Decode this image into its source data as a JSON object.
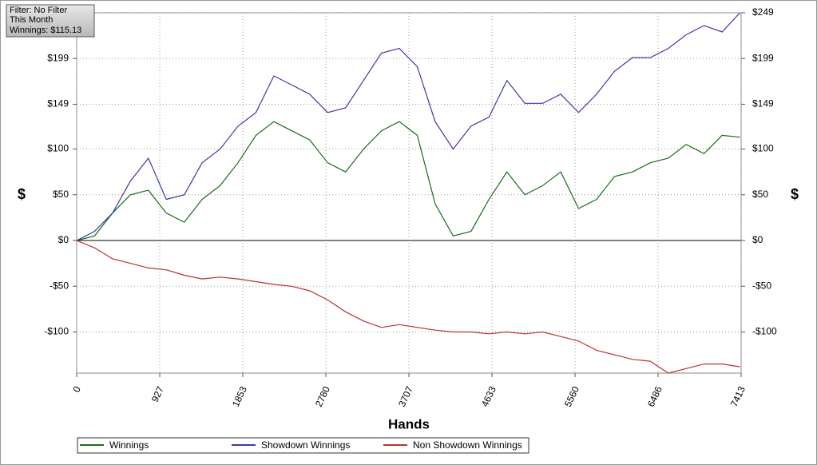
{
  "chart_data": {
    "type": "line",
    "info": [
      "Filter: No Filter",
      "This Month",
      "Winnings: $115.13"
    ],
    "xlabel": "Hands",
    "ylabel": "$",
    "y2label": "$",
    "xlim": [
      0,
      7413
    ],
    "xticks": [
      0,
      927,
      1853,
      2780,
      3707,
      4633,
      5560,
      6486,
      7413
    ],
    "ylim": [
      -145,
      249
    ],
    "yticks": [
      {
        "value": 249,
        "label": "$249"
      },
      {
        "value": 199,
        "label": "$199"
      },
      {
        "value": 149,
        "label": "$149"
      },
      {
        "value": 100,
        "label": "$100"
      },
      {
        "value": 50,
        "label": "$50"
      },
      {
        "value": 0,
        "label": "$0"
      },
      {
        "value": -50,
        "label": "-$50"
      },
      {
        "value": -100,
        "label": "-$100"
      }
    ],
    "grid": true,
    "x": [
      0,
      200,
      400,
      600,
      800,
      1000,
      1200,
      1400,
      1600,
      1800,
      2000,
      2200,
      2400,
      2600,
      2800,
      3000,
      3200,
      3400,
      3600,
      3800,
      4000,
      4200,
      4400,
      4600,
      4800,
      5000,
      5200,
      5400,
      5600,
      5800,
      6000,
      6200,
      6400,
      6600,
      6800,
      7000,
      7200,
      7400
    ],
    "series": [
      {
        "name": "Winnings",
        "color": "#1a6b1a",
        "values": [
          0,
          5,
          30,
          50,
          55,
          30,
          20,
          45,
          60,
          85,
          115,
          130,
          120,
          110,
          85,
          75,
          100,
          120,
          130,
          115,
          40,
          5,
          10,
          45,
          75,
          50,
          60,
          75,
          35,
          45,
          70,
          75,
          85,
          90,
          105,
          95,
          115,
          113
        ]
      },
      {
        "name": "Showdown Winnings",
        "color": "#3a3aaa",
        "values": [
          0,
          10,
          30,
          65,
          90,
          45,
          50,
          85,
          100,
          125,
          140,
          180,
          170,
          160,
          140,
          145,
          175,
          205,
          210,
          190,
          130,
          100,
          125,
          135,
          175,
          150,
          150,
          160,
          140,
          160,
          185,
          200,
          200,
          210,
          225,
          235,
          228,
          249
        ]
      },
      {
        "name": "Non Showdown Winnings",
        "color": "#c03030",
        "values": [
          0,
          -8,
          -20,
          -25,
          -30,
          -32,
          -38,
          -42,
          -40,
          -42,
          -45,
          -48,
          -50,
          -55,
          -65,
          -78,
          -88,
          -95,
          -92,
          -95,
          -98,
          -100,
          -100,
          -102,
          -100,
          -102,
          -100,
          -105,
          -110,
          -120,
          -125,
          -130,
          -132,
          -145,
          -140,
          -135,
          -135,
          -138
        ]
      }
    ]
  }
}
